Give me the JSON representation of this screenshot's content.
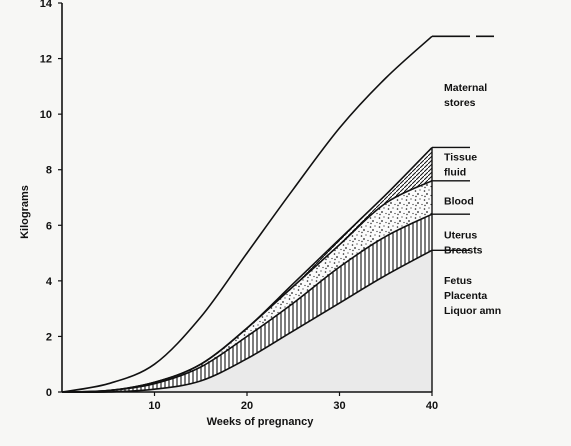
{
  "chart_data": {
    "type": "area",
    "title": "",
    "xlabel": "Weeks of pregnancy",
    "ylabel": "Kilograms",
    "xlim": [
      0,
      40
    ],
    "ylim": [
      0,
      14
    ],
    "grid": false,
    "x_ticks": [
      10,
      20,
      30,
      40
    ],
    "y_ticks": [
      0,
      2,
      4,
      6,
      8,
      10,
      12,
      14
    ],
    "x": [
      0,
      5,
      10,
      15,
      20,
      25,
      30,
      35,
      40
    ],
    "series": [
      {
        "name": "Fetus Placenta Liquor amn",
        "lines": [
          "Fetus",
          "Placenta",
          "Liquor amn"
        ],
        "values": [
          0,
          0,
          0.1,
          0.4,
          1.2,
          2.2,
          3.2,
          4.2,
          5.1
        ],
        "fill": "#eaeaea"
      },
      {
        "name": "Uterus Breasts",
        "lines": [
          "Uterus",
          "Breasts"
        ],
        "values": [
          0,
          0.05,
          0.3,
          0.9,
          2.0,
          3.2,
          4.5,
          5.6,
          6.4
        ],
        "fill": "vertical-hatch"
      },
      {
        "name": "Blood",
        "lines": [
          "Blood"
        ],
        "values": [
          0,
          0.05,
          0.35,
          1.0,
          2.3,
          3.8,
          5.3,
          6.8,
          7.6
        ],
        "fill": "stipple"
      },
      {
        "name": "Tissue fluid",
        "lines": [
          "Tissue",
          "fluid"
        ],
        "values": [
          0,
          0.05,
          0.35,
          1.0,
          2.3,
          3.9,
          5.5,
          7.1,
          8.8
        ],
        "fill": "diagonal-hatch"
      },
      {
        "name": "Maternal stores",
        "lines": [
          "Maternal",
          "stores"
        ],
        "values": [
          0,
          0.3,
          1.0,
          2.7,
          5.0,
          7.3,
          9.5,
          11.3,
          12.8
        ],
        "fill": "none"
      }
    ],
    "label_y": [
      3.5,
      5.4,
      6.9,
      8.2,
      10.7
    ],
    "right_tick_y": [
      5.1,
      6.4,
      7.6,
      8.8,
      12.8
    ]
  }
}
